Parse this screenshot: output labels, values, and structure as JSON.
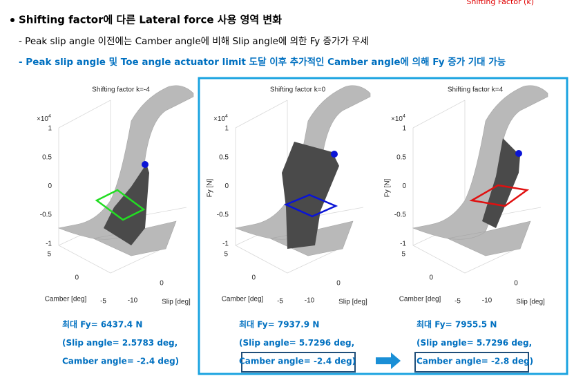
{
  "header_fragment": "Shifting Factor (k)",
  "bullets": {
    "title": "Shifting factor에 다른 Lateral force 사용 영역 변화",
    "line_1": "- Peak slip angle 이전에는 Camber angle에 비해 Slip angle에 의한 Fy 증가가 우세",
    "line_2": "- Peak slip angle 및 Toe angle actuator limit 도달 이후 추가적인 Camber angle에 의해 Fy 증가 기대 가능"
  },
  "plots": [
    {
      "title": "Shifting factor k=-4",
      "exponent_base": "×10",
      "exponent": "4",
      "yticks": [
        "1",
        "0.5",
        "0",
        "-0.5",
        "-1"
      ],
      "camber_ticks": [
        "5",
        "0",
        "-5"
      ],
      "slip_ticks": [
        "-10",
        "0"
      ],
      "camber_label": "Camber [deg]",
      "slip_label": "Slip [deg]",
      "result": [
        "최대 Fy= 6437.4 N",
        "(Slip angle= 2.5783 deg,",
        "Camber angle= -2.4 deg)"
      ]
    },
    {
      "title": "Shifting factor k=0",
      "exponent_base": "×10",
      "exponent": "4",
      "ylabel": "Fy [N]",
      "yticks": [
        "1",
        "0.5",
        "0",
        "-0.5",
        "-1"
      ],
      "camber_ticks": [
        "5",
        "0",
        "-5"
      ],
      "slip_ticks": [
        "-10",
        "0"
      ],
      "camber_label": "Camber [deg]",
      "slip_label": "Slip [deg]",
      "result": [
        "최대 Fy= 7937.9 N",
        "(Slip angle= 5.7296 deg,",
        "Camber angle= -2.4 deg)"
      ]
    },
    {
      "title": "Shifting factor k=4",
      "exponent_base": "×10",
      "exponent": "4",
      "ylabel": "Fy [N]",
      "yticks": [
        "1",
        "0.5",
        "0",
        "-0.5",
        "-1"
      ],
      "camber_ticks": [
        "5",
        "0",
        "-5"
      ],
      "slip_ticks": [
        "-10",
        "0"
      ],
      "camber_label": "Camber [deg]",
      "slip_label": "Slip [deg]",
      "result": [
        "최대 Fy= 7955.5 N",
        "(Slip angle= 5.7296 deg,",
        "Camber angle= -2.8 deg)"
      ]
    }
  ]
}
